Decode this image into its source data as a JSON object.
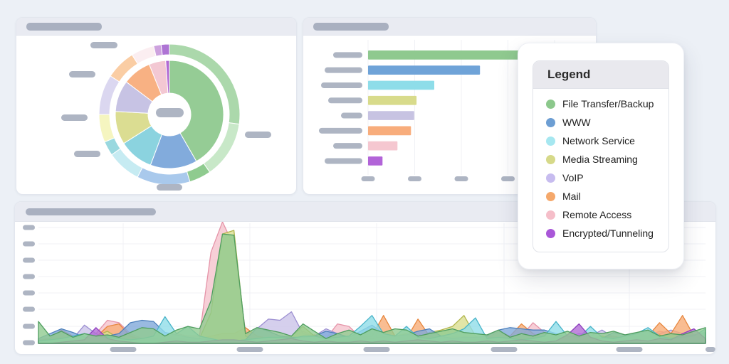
{
  "page": {
    "background": "#ECF0F6",
    "note": "dashboard; all card titles and axis/category labels are redacted gray pills"
  },
  "legend": {
    "title": "Legend",
    "items": [
      {
        "label": "File Transfer/Backup",
        "color": "#8CC88C"
      },
      {
        "label": "WWW",
        "color": "#6D9ED3"
      },
      {
        "label": "Network Service",
        "color": "#A6E7F0"
      },
      {
        "label": "Media Streaming",
        "color": "#D6D989"
      },
      {
        "label": "VoIP",
        "color": "#C7BCEF"
      },
      {
        "label": "Mail",
        "color": "#F5A86B"
      },
      {
        "label": "Remote Access",
        "color": "#F5BEC9"
      },
      {
        "label": "Encrypted/Tunneling",
        "color": "#A957D8"
      }
    ]
  },
  "chart_data": [
    {
      "type": "pie",
      "variant": "sunburst-donut",
      "title": "(redacted pill)",
      "center_label": "(redacted pill)",
      "callout_labels_redacted": true,
      "inner_ring": {
        "categories": [
          "File Transfer/Backup",
          "WWW",
          "Network Service",
          "Media Streaming",
          "VoIP",
          "Mail",
          "Remote Access",
          "Encrypted/Tunneling"
        ],
        "values_pct": [
          41.7,
          14.0,
          10.3,
          9.9,
          9.4,
          8.6,
          5.0,
          1.1
        ],
        "colors": [
          "#95CC95",
          "#82ABDC",
          "#8BD3DF",
          "#DBDD92",
          "#C7C3E4",
          "#F8B183",
          "#F3C8D3",
          "#B269D3"
        ]
      },
      "outer_ring": {
        "segments": [
          {
            "parent": "File Transfer/Backup",
            "pct": 27.2,
            "color": "#ABD8AB"
          },
          {
            "parent": "File Transfer/Backup",
            "pct": 13.1,
            "color": "#C8E8C8"
          },
          {
            "parent": "File Transfer/Backup",
            "pct": 5.0,
            "color": "#8FCB8F"
          },
          {
            "parent": "WWW",
            "pct": 12.2,
            "color": "#A9C9EC"
          },
          {
            "parent": "Network Service",
            "pct": 7.8,
            "color": "#C6EBF2"
          },
          {
            "parent": "Network Service",
            "pct": 3.3,
            "color": "#99D8DF"
          },
          {
            "parent": "Media Streaming",
            "pct": 6.4,
            "color": "#F5F5C0"
          },
          {
            "parent": "VoIP",
            "pct": 9.2,
            "color": "#DBD7F0"
          },
          {
            "parent": "Mail",
            "pct": 6.9,
            "color": "#FACDA4"
          },
          {
            "parent": "Remote Access",
            "pct": 5.3,
            "color": "#FBEEF1"
          },
          {
            "parent": "Encrypted/Tunneling",
            "pct": 1.7,
            "color": "#CDA2DE"
          },
          {
            "parent": "Encrypted/Tunneling",
            "pct": 1.9,
            "color": "#AE74D4"
          }
        ]
      }
    },
    {
      "type": "bar",
      "orientation": "horizontal",
      "title": "(redacted pill)",
      "categories": [
        "File Transfer/Backup",
        "WWW",
        "Network Service",
        "Media Streaming",
        "VoIP",
        "Mail",
        "Remote Access",
        "Encrypted/Tunneling"
      ],
      "values": [
        449,
        240,
        142,
        104,
        99,
        92,
        63,
        31
      ],
      "xlim": [
        0,
        472
      ],
      "gridline_step": 100,
      "x_tick_count": 4,
      "colors": [
        "#8FC98F",
        "#6FA3D8",
        "#8EDDE9",
        "#D8DB8B",
        "#C7C3E2",
        "#F8AD7C",
        "#F5C7D0",
        "#B264D8"
      ],
      "category_labels_redacted": true,
      "x_tick_labels_redacted": true,
      "category_pill_widths": [
        41,
        53,
        58,
        48,
        30,
        61,
        41,
        53
      ]
    },
    {
      "type": "area",
      "title": "(redacted pill)",
      "points": 59,
      "ylim": [
        0,
        100
      ],
      "y_tick_count": 8,
      "x_tick_count": 6,
      "grid": true,
      "axis_labels_redacted": true,
      "paint_order_note": "series listed bottom-to-top",
      "series": [
        {
          "name": "Remote Access",
          "fill": "#F5C3CD",
          "stroke": "#E593A8",
          "values": [
            3,
            4,
            5,
            6,
            5,
            8,
            19,
            17,
            8,
            4,
            3,
            2,
            8,
            6,
            6,
            75,
            100,
            80,
            10,
            4,
            3,
            4,
            6,
            10,
            6,
            4,
            16,
            14,
            5,
            4,
            3,
            4,
            5,
            4,
            3,
            4,
            5,
            6,
            4,
            3,
            4,
            5,
            6,
            17,
            9,
            6,
            4,
            3,
            4,
            5,
            4,
            3,
            5,
            6,
            10,
            8,
            5,
            4,
            3
          ]
        },
        {
          "name": "VoIP",
          "fill": "#CAC3E9",
          "stroke": "#9C8FD1",
          "values": [
            0,
            2,
            3,
            4,
            15,
            8,
            4,
            3,
            2,
            3,
            4,
            3,
            2,
            2,
            3,
            2,
            2,
            2,
            3,
            12,
            20,
            19,
            26,
            8,
            6,
            12,
            8,
            4,
            3,
            4,
            5,
            4,
            6,
            8,
            4,
            3,
            4,
            5,
            4,
            6,
            4,
            3,
            4,
            5,
            6,
            4,
            5,
            8,
            6,
            11,
            5,
            4,
            6,
            5,
            8,
            11,
            8,
            5,
            3
          ]
        },
        {
          "name": "Mail",
          "fill": "#F8AC77",
          "stroke": "#E7873F",
          "values": [
            2,
            4,
            11,
            6,
            4,
            5,
            14,
            16,
            6,
            3,
            2,
            3,
            4,
            3,
            4,
            6,
            8,
            8,
            13,
            6,
            4,
            3,
            4,
            5,
            7,
            4,
            3,
            4,
            5,
            6,
            23,
            6,
            4,
            20,
            6,
            4,
            5,
            4,
            3,
            4,
            10,
            6,
            16,
            8,
            4,
            5,
            4,
            3,
            4,
            5,
            6,
            4,
            8,
            6,
            17,
            8,
            23,
            6,
            4
          ]
        },
        {
          "name": "Media Streaming",
          "fill": "#DBDE91",
          "stroke": "#B2B64E",
          "values": [
            0,
            0,
            2,
            3,
            4,
            6,
            10,
            4,
            2,
            0,
            0,
            2,
            3,
            2,
            4,
            25,
            90,
            93,
            6,
            2,
            3,
            4,
            6,
            14,
            6,
            3,
            2,
            2,
            3,
            4,
            5,
            6,
            8,
            4,
            9,
            11,
            14,
            23,
            6,
            3,
            2,
            2,
            3,
            4,
            3,
            4,
            5,
            6,
            4,
            6,
            3,
            2,
            3,
            4,
            7,
            3,
            4,
            2,
            3
          ]
        },
        {
          "name": "WWW",
          "fill": "#7FA9DA",
          "stroke": "#4E80BC",
          "values": [
            4,
            8,
            12,
            9,
            5,
            4,
            6,
            8,
            17,
            19,
            18,
            9,
            7,
            5,
            4,
            3,
            2,
            2,
            3,
            13,
            10,
            6,
            5,
            5,
            6,
            10,
            8,
            5,
            10,
            15,
            8,
            6,
            7,
            10,
            12,
            6,
            4,
            5,
            5,
            6,
            11,
            13,
            12,
            11,
            11,
            8,
            5,
            6,
            5,
            4,
            9,
            7,
            8,
            10,
            5,
            4,
            6,
            7,
            9
          ]
        },
        {
          "name": "Network Service",
          "fill": "#90DDE9",
          "stroke": "#49B4C9",
          "values": [
            2,
            3,
            4,
            6,
            8,
            6,
            5,
            4,
            3,
            4,
            6,
            22,
            8,
            14,
            6,
            4,
            2,
            2,
            3,
            4,
            5,
            5,
            4,
            6,
            6,
            4,
            5,
            6,
            14,
            23,
            8,
            6,
            14,
            5,
            4,
            6,
            8,
            12,
            21,
            4,
            5,
            4,
            3,
            4,
            6,
            18,
            6,
            5,
            14,
            5,
            4,
            6,
            8,
            13,
            6,
            4,
            5,
            6,
            12
          ]
        },
        {
          "name": "Encrypted/Tunneling",
          "fill": "#B26BD6",
          "stroke": "#8E3FBE",
          "values": [
            0,
            0,
            1,
            2,
            3,
            13,
            4,
            2,
            1,
            0,
            0,
            1,
            2,
            1,
            1,
            2,
            3,
            3,
            2,
            1,
            2,
            3,
            4,
            2,
            1,
            2,
            1,
            1,
            2,
            1,
            2,
            1,
            2,
            3,
            2,
            1,
            2,
            1,
            1,
            2,
            1,
            2,
            3,
            2,
            1,
            2,
            7,
            16,
            5,
            2,
            1,
            2,
            3,
            2,
            4,
            3,
            8,
            12,
            4
          ]
        },
        {
          "name": "File Transfer/Backup",
          "fill": "#90CA90",
          "stroke": "#4F9E5F",
          "values": [
            18,
            6,
            10,
            5,
            8,
            6,
            7,
            5,
            9,
            13,
            12,
            6,
            11,
            14,
            12,
            35,
            90,
            89,
            8,
            13,
            11,
            9,
            6,
            16,
            10,
            4,
            8,
            11,
            7,
            12,
            9,
            12,
            11,
            6,
            8,
            10,
            12,
            9,
            8,
            7,
            11,
            5,
            8,
            6,
            9,
            7,
            10,
            6,
            9,
            8,
            10,
            7,
            9,
            11,
            6,
            8,
            7,
            10,
            13
          ]
        }
      ]
    }
  ],
  "style": {
    "redacted_pill_color": "#AEB5C3",
    "card_header_color": "#E9EBF2",
    "grid_color": "#F0F1F6"
  }
}
